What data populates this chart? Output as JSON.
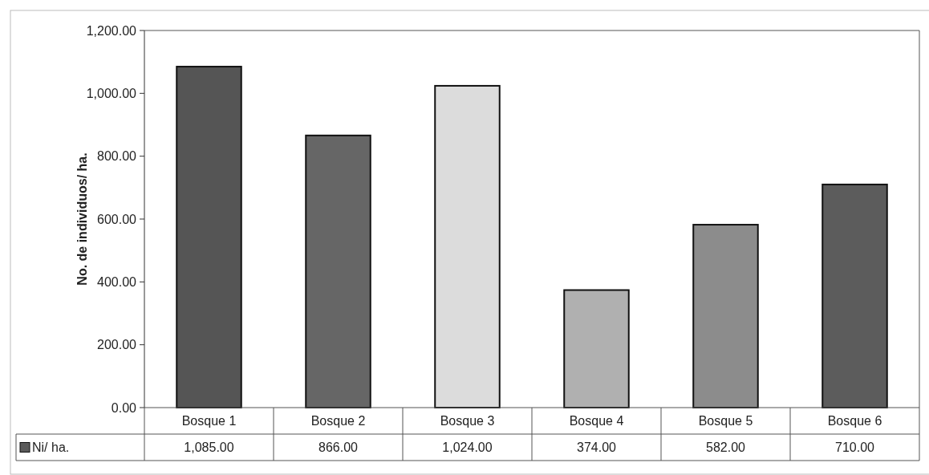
{
  "chart_data": {
    "type": "bar",
    "ylabel": "No. de individuos/ ha.",
    "categories": [
      "Bosque 1",
      "Bosque 2",
      "Bosque 3",
      "Bosque 4",
      "Bosque 5",
      "Bosque 6"
    ],
    "series": [
      {
        "name": "Ni/ ha.",
        "color": "#5a5a5a",
        "colors": [
          "#555555",
          "#666666",
          "#dcdcdc",
          "#b0b0b0",
          "#8c8c8c",
          "#5c5c5c"
        ],
        "values": [
          1085,
          866,
          1024,
          374,
          582,
          710
        ],
        "value_labels": [
          "1,085.00",
          "866.00",
          "1,024.00",
          "374.00",
          "582.00",
          "710.00"
        ]
      }
    ],
    "ylim": [
      0,
      1200
    ],
    "yticks": [
      {
        "value": 0,
        "label": "0.00"
      },
      {
        "value": 200,
        "label": "200.00"
      },
      {
        "value": 400,
        "label": "400.00"
      },
      {
        "value": 600,
        "label": "600.00"
      },
      {
        "value": 800,
        "label": "800.00"
      },
      {
        "value": 1000,
        "label": "1,000.00"
      },
      {
        "value": 1200,
        "label": "1,200.00"
      }
    ],
    "legend": "bottom left"
  }
}
